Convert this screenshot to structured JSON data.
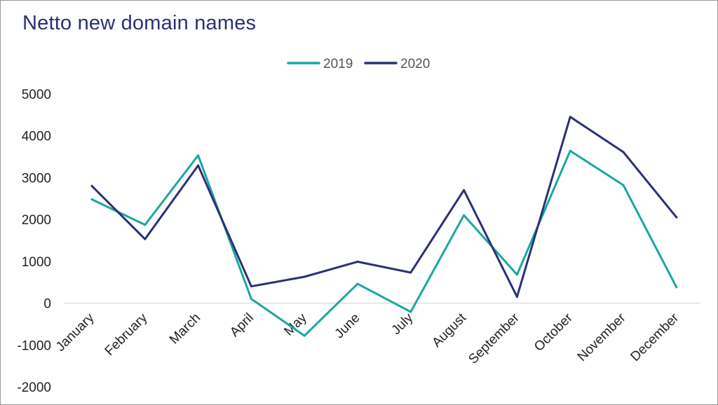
{
  "chart_data": {
    "type": "line",
    "title": "Netto new domain names",
    "xlabel": "",
    "ylabel": "",
    "categories": [
      "January",
      "February",
      "March",
      "April",
      "May",
      "June",
      "July",
      "August",
      "September",
      "October",
      "November",
      "December"
    ],
    "ylim": [
      -2000,
      5000
    ],
    "yticks": [
      "5000",
      "4000",
      "3000",
      "2000",
      "1000",
      "0",
      "-1000",
      "-2000"
    ],
    "grid": false,
    "legend_position": "top-center",
    "series": [
      {
        "name": "2019",
        "color": "#1aa7a0",
        "values": [
          2480,
          1870,
          3530,
          100,
          -780,
          460,
          -210,
          2100,
          680,
          3640,
          2820,
          380
        ]
      },
      {
        "name": "2020",
        "color": "#2b3077",
        "values": [
          2800,
          1530,
          3290,
          400,
          630,
          990,
          730,
          2700,
          150,
          4450,
          3610,
          2050
        ]
      }
    ]
  }
}
